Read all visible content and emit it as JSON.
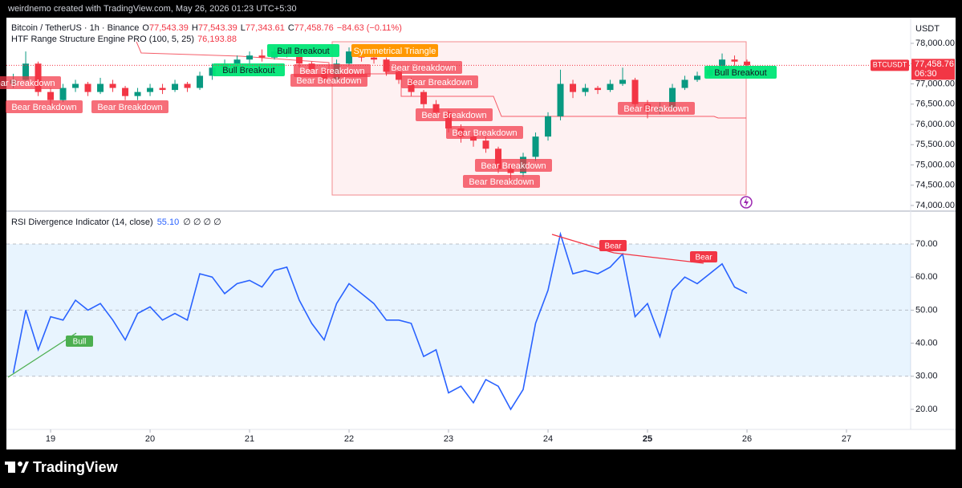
{
  "watermark": "weirdnemo created with TradingView.com, May 26, 2026 01:23 UTC+5:30",
  "brand": "TradingView",
  "chart_data": [
    {
      "type": "candlestick",
      "symbol": "Bitcoin / TetherUS · 1h · Binance",
      "ohlc_legend": [
        {
          "label": "O",
          "value": "77,543.39"
        },
        {
          "label": "H",
          "value": "77,543.39"
        },
        {
          "label": "L",
          "value": "77,343.61"
        },
        {
          "label": "C",
          "value": "77,458.76"
        }
      ],
      "change": "−84.63 (−0.11%)",
      "indicator": "HTF Range Structure Engine PRO (100, 5, 25)",
      "indicator_value": "76,193.88",
      "unit": "USDT",
      "price_tag": {
        "symbol": "BTCUSDT",
        "price": "77,458.76",
        "countdown": "06:30"
      },
      "up_color": "#089981",
      "down_color": "#f23645",
      "x": [
        18.625,
        18.75,
        18.875,
        19.0,
        19.125,
        19.25,
        19.375,
        19.5,
        19.625,
        19.75,
        19.875,
        20.0,
        20.125,
        20.25,
        20.375,
        20.5,
        20.625,
        20.75,
        20.875,
        21.0,
        21.125,
        21.25,
        21.375,
        21.5,
        21.625,
        21.75,
        21.875,
        22.0,
        22.125,
        22.25,
        22.375,
        22.5,
        22.625,
        22.75,
        22.875,
        23.0,
        23.125,
        23.25,
        23.375,
        23.5,
        23.625,
        23.75,
        23.875,
        24.0,
        24.125,
        24.25,
        24.375,
        24.5,
        24.625,
        24.75,
        24.875,
        25.0,
        25.125,
        25.25,
        25.375,
        25.5,
        25.625,
        25.75,
        25.875,
        26.0
      ],
      "open": [
        77000,
        77100,
        77500,
        76800,
        76600,
        76900,
        77000,
        76800,
        77000,
        76900,
        76700,
        76800,
        76900,
        76850,
        77000,
        76900,
        77200,
        77400,
        77500,
        77600,
        77700,
        77650,
        77800,
        77750,
        77500,
        77350,
        77100,
        77500,
        77800,
        77650,
        77600,
        77300,
        77100,
        76800,
        76500,
        76300,
        75900,
        75700,
        75600,
        75400,
        74900,
        74800,
        75200,
        75700,
        76200,
        77000,
        76800,
        76900,
        76850,
        77000,
        77100,
        76500,
        76350,
        76400,
        76900,
        77100,
        77200,
        77350,
        77600,
        77550
      ],
      "high": [
        77250,
        77800,
        77550,
        76900,
        77000,
        77100,
        77050,
        77150,
        77100,
        76950,
        76900,
        77000,
        77000,
        77100,
        77050,
        77300,
        77500,
        77600,
        77700,
        77800,
        77850,
        77900,
        77900,
        77800,
        77550,
        77400,
        77600,
        77900,
        77850,
        77700,
        77650,
        77350,
        77150,
        76850,
        76600,
        76350,
        76000,
        75800,
        75700,
        75450,
        75000,
        75300,
        75800,
        76300,
        77350,
        77100,
        77000,
        76950,
        77100,
        77400,
        77150,
        76600,
        76550,
        77000,
        77200,
        77300,
        77450,
        77750,
        77700,
        77600
      ],
      "low": [
        76900,
        77050,
        76700,
        76450,
        76550,
        76800,
        76700,
        76750,
        76800,
        76600,
        76600,
        76700,
        76750,
        76800,
        76800,
        76850,
        77100,
        77300,
        77400,
        77500,
        77550,
        77600,
        77650,
        77400,
        77250,
        77000,
        77050,
        77450,
        77550,
        77500,
        77200,
        77000,
        76700,
        76400,
        76150,
        75800,
        75550,
        75450,
        75300,
        74800,
        74550,
        74700,
        75100,
        75600,
        76100,
        76650,
        76700,
        76750,
        76800,
        76950,
        76400,
        76150,
        76250,
        76350,
        76850,
        77050,
        77150,
        77300,
        77450,
        77400
      ],
      "close": [
        77100,
        77500,
        76800,
        76600,
        76900,
        77000,
        76800,
        77000,
        76900,
        76700,
        76800,
        76900,
        76850,
        77000,
        76900,
        77200,
        77400,
        77500,
        77600,
        77700,
        77650,
        77800,
        77750,
        77500,
        77350,
        77100,
        77500,
        77800,
        77650,
        77600,
        77300,
        77100,
        76800,
        76500,
        76300,
        75900,
        75700,
        75600,
        75400,
        74900,
        74800,
        75200,
        75700,
        76200,
        77000,
        76800,
        76900,
        76850,
        77000,
        77100,
        76500,
        76350,
        76400,
        76900,
        77100,
        77200,
        77350,
        77600,
        77550,
        77458.76
      ],
      "xlim": [
        18.556,
        27.645
      ],
      "ylim": [
        73881,
        78634
      ],
      "yticks": [
        {
          "value": 74000,
          "label": "74,000.00"
        },
        {
          "value": 74500,
          "label": "74,500.00"
        },
        {
          "value": 75000,
          "label": "75,000.00"
        },
        {
          "value": 75500,
          "label": "75,500.00"
        },
        {
          "value": 76000,
          "label": "76,000.00"
        },
        {
          "value": 76500,
          "label": "76,500.00"
        },
        {
          "value": 77000,
          "label": "77,000.00"
        },
        {
          "value": 77500,
          "label": "77,500.00"
        },
        {
          "value": 78000,
          "label": "78,000.00"
        }
      ],
      "pattern_label": "Symmetrical Triangle",
      "annotations": [
        {
          "text": "Bear Breakdown",
          "color": "#f23645"
        },
        {
          "text": "Bear Breakdown",
          "color": "#f23645"
        },
        {
          "text": "Bear Breakdown",
          "color": "#f23645"
        },
        {
          "text": "Bull Breakout",
          "color": "#00e676"
        },
        {
          "text": "Bull Breakout",
          "color": "#00e676"
        },
        {
          "text": "Bear Breakdown",
          "color": "#f23645"
        },
        {
          "text": "Bear Breakdown",
          "color": "#f23645"
        },
        {
          "text": "Bear Breakdown",
          "color": "#f23645"
        },
        {
          "text": "Bear Breakdown",
          "color": "#f23645"
        },
        {
          "text": "Bear Breakdown",
          "color": "#f23645"
        },
        {
          "text": "Bear Breakdown",
          "color": "#f23645"
        },
        {
          "text": "Bear Breakdown",
          "color": "#f23645"
        },
        {
          "text": "Bear Breakdown",
          "color": "#f23645"
        },
        {
          "text": "Bear Breakdown",
          "color": "#f23645"
        },
        {
          "text": "Bull Breakout",
          "color": "#00e676"
        }
      ]
    },
    {
      "type": "line",
      "name": "RSI Divergence Indicator (14, close)",
      "current": "55.10",
      "extra": "∅ ∅ ∅ ∅",
      "color": "#2962ff",
      "x": [
        18.625,
        18.75,
        18.875,
        19.0,
        19.125,
        19.25,
        19.375,
        19.5,
        19.625,
        19.75,
        19.875,
        20.0,
        20.125,
        20.25,
        20.375,
        20.5,
        20.625,
        20.75,
        20.875,
        21.0,
        21.125,
        21.25,
        21.375,
        21.5,
        21.625,
        21.75,
        21.875,
        22.0,
        22.125,
        22.25,
        22.375,
        22.5,
        22.625,
        22.75,
        22.875,
        23.0,
        23.125,
        23.25,
        23.375,
        23.5,
        23.625,
        23.75,
        23.875,
        24.0,
        24.125,
        24.25,
        24.375,
        24.5,
        24.625,
        24.75,
        24.875,
        25.0,
        25.125,
        25.25,
        25.375,
        25.5,
        25.625,
        25.75,
        25.875,
        26.0
      ],
      "values": [
        31,
        50,
        38,
        48,
        47,
        53,
        50,
        52,
        47,
        41,
        49,
        51,
        47,
        49,
        47,
        61,
        60,
        55,
        58,
        59,
        57,
        62,
        63,
        53,
        46,
        41,
        52,
        58,
        55,
        52,
        47,
        47,
        46,
        36,
        38,
        25,
        27,
        22,
        29,
        27,
        20,
        26,
        46,
        56,
        73,
        61,
        62,
        61,
        63,
        67,
        48,
        52,
        42,
        56,
        60,
        58,
        61,
        64,
        57,
        55.1
      ],
      "xlim": [
        18.556,
        27.645
      ],
      "ylim": [
        13.93,
        79.71
      ],
      "yticks": [
        {
          "value": 20,
          "label": "20.00"
        },
        {
          "value": 30,
          "label": "30.00"
        },
        {
          "value": 40,
          "label": "40.00"
        },
        {
          "value": 50,
          "label": "50.00"
        },
        {
          "value": 60,
          "label": "60.00"
        },
        {
          "value": 70,
          "label": "70.00"
        }
      ],
      "xticks": [
        19,
        20,
        21,
        22,
        23,
        24,
        25,
        26,
        27
      ],
      "annotations": [
        {
          "text": "Bull",
          "color": "#4caf50"
        },
        {
          "text": "Bear",
          "color": "#f23645"
        },
        {
          "text": "Bear",
          "color": "#f23645"
        }
      ]
    }
  ]
}
